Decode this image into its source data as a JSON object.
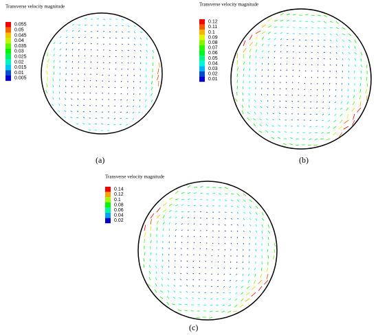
{
  "panels": [
    {
      "legend": {
        "title": "Transverse velocity magnitude",
        "levels": [
          0.055,
          0.05,
          0.045,
          0.04,
          0.035,
          0.03,
          0.025,
          0.02,
          0.015,
          0.01,
          0.005
        ]
      },
      "caption": "(a)"
    },
    {
      "legend": {
        "title": "Transverse velocity magnitude",
        "levels": [
          0.12,
          0.11,
          0.1,
          0.09,
          0.08,
          0.07,
          0.06,
          0.05,
          0.04,
          0.03,
          0.02,
          0.01
        ]
      },
      "caption": "(b)"
    },
    {
      "legend": {
        "title": "Transverse velocity magnitude",
        "levels": [
          0.14,
          0.12,
          0.1,
          0.08,
          0.06,
          0.04,
          0.02
        ]
      },
      "caption": "(c)"
    }
  ]
}
